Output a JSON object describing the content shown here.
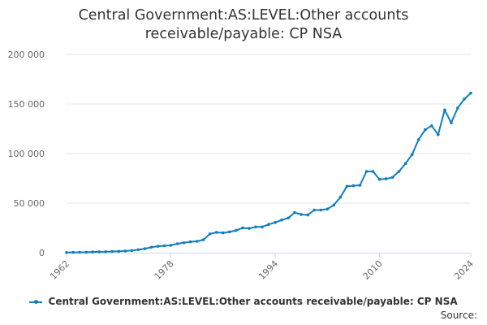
{
  "title": {
    "line1": "Central Government:AS:LEVEL:Other accounts",
    "line2": "receivable/payable: CP NSA"
  },
  "legend": {
    "label": "Central Government:AS:LEVEL:Other accounts receivable/payable: CP NSA"
  },
  "source": {
    "label": "Source:"
  },
  "colors": {
    "series": "#0f7fbf",
    "grid": "#e6e6e6",
    "axis": "#ccd6eb",
    "text": "#333333",
    "tick": "#666666"
  },
  "chart_data": {
    "type": "line",
    "title": "Central Government:AS:LEVEL:Other accounts receivable/payable: CP NSA",
    "xlabel": "",
    "ylabel": "",
    "xlim": [
      1962,
      2024
    ],
    "ylim": [
      0,
      200000
    ],
    "x_ticks": [
      1962,
      1978,
      1994,
      2010,
      2024
    ],
    "y_ticks": [
      0,
      50000,
      100000,
      150000,
      200000
    ],
    "y_tick_labels": [
      "0",
      "50 000",
      "100 000",
      "150 000",
      "200 000"
    ],
    "grid": true,
    "legend_position": "bottom",
    "series": [
      {
        "name": "Central Government:AS:LEVEL:Other accounts receivable/payable: CP NSA",
        "x": [
          1962,
          1963,
          1964,
          1965,
          1966,
          1967,
          1968,
          1969,
          1970,
          1971,
          1972,
          1973,
          1974,
          1975,
          1976,
          1977,
          1978,
          1979,
          1980,
          1981,
          1982,
          1983,
          1984,
          1985,
          1986,
          1987,
          1988,
          1989,
          1990,
          1991,
          1992,
          1993,
          1994,
          1995,
          1996,
          1997,
          1998,
          1999,
          2000,
          2001,
          2002,
          2003,
          2004,
          2005,
          2006,
          2007,
          2008,
          2009,
          2010,
          2011,
          2012,
          2013,
          2014,
          2015,
          2016,
          2017,
          2018,
          2019,
          2020,
          2021,
          2022,
          2023,
          2024
        ],
        "values": [
          200,
          300,
          400,
          500,
          700,
          900,
          1000,
          1200,
          1400,
          1700,
          2100,
          3000,
          4000,
          5500,
          6500,
          7000,
          7500,
          9000,
          10000,
          11000,
          11500,
          13000,
          19000,
          20500,
          20000,
          21000,
          22500,
          25000,
          24500,
          26000,
          26000,
          28500,
          30500,
          33000,
          35000,
          40500,
          38500,
          38000,
          43000,
          43000,
          44000,
          48000,
          56000,
          67000,
          67500,
          68000,
          82000,
          82000,
          74000,
          74500,
          76000,
          82000,
          90000,
          99000,
          114000,
          124000,
          128000,
          119000,
          144000,
          131000,
          146000,
          155000,
          161000
        ]
      }
    ]
  }
}
